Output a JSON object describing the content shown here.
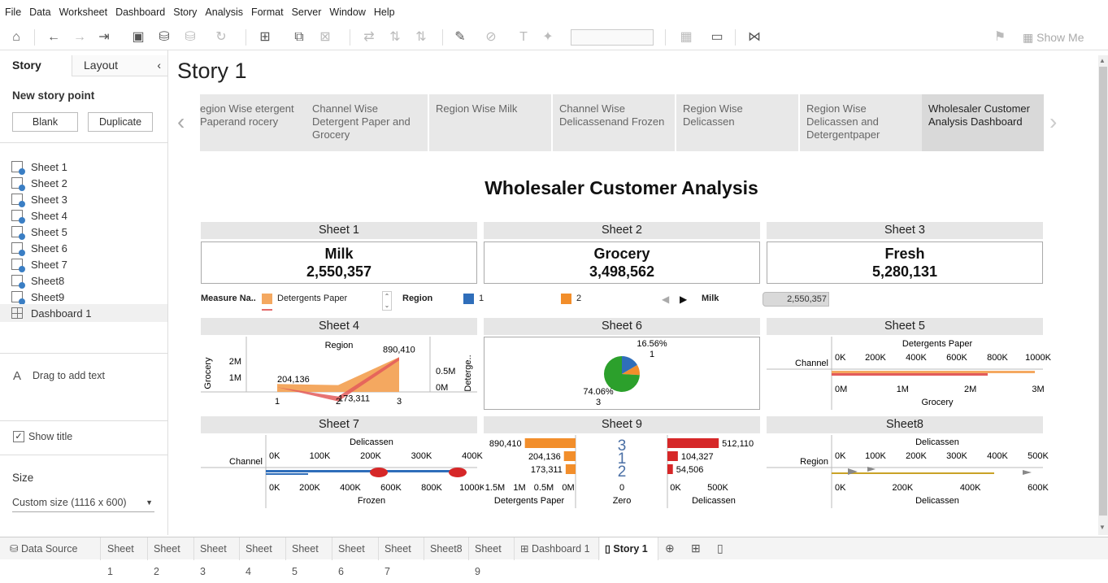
{
  "menu": [
    "File",
    "Data",
    "Worksheet",
    "Dashboard",
    "Story",
    "Analysis",
    "Format",
    "Server",
    "Window",
    "Help"
  ],
  "toolbar": {
    "show_me": "Show Me"
  },
  "left": {
    "tab_story": "Story",
    "tab_layout": "Layout",
    "new_story_point": "New story point",
    "blank": "Blank",
    "duplicate": "Duplicate",
    "sheets": [
      "Sheet 1",
      "Sheet 2",
      "Sheet 3",
      "Sheet 4",
      "Sheet 5",
      "Sheet 6",
      "Sheet 7",
      "Sheet8",
      "Sheet9"
    ],
    "dashboard": "Dashboard 1",
    "drag_text": "Drag to add text",
    "show_title": "Show title",
    "size_label": "Size",
    "size_value": "Custom size (1116 x 600)"
  },
  "story": {
    "title": "Story 1",
    "points": [
      "egion Wise etergent Paperand rocery",
      "Channel Wise Detergent Paper and Grocery",
      "Region Wise Milk",
      "Channel Wise Delicassenand Frozen",
      "Region Wise Delicassen",
      "Region Wise Delicassen  and Detergentpaper",
      "Wholesaler Customer Analysis  Dashboard"
    ]
  },
  "dashboard": {
    "title": "Wholesaler  Customer Analysis",
    "sheet1": {
      "title": "Sheet 1",
      "label": "Milk",
      "value": "2,550,357"
    },
    "sheet2": {
      "title": "Sheet 2",
      "label": "Grocery",
      "value": "3,498,562"
    },
    "sheet3": {
      "title": "Sheet 3",
      "label": "Fresh",
      "value": "5,280,131"
    },
    "legend": {
      "measure_title": "Measure Na..",
      "measure_item": "Detergents Paper",
      "region_title": "Region",
      "region_1": "1",
      "region_2": "2",
      "milk_title": "Milk",
      "milk_value": "2,550,357"
    },
    "sheet4": {
      "title": "Sheet 4"
    },
    "sheet5": {
      "title": "Sheet 5"
    },
    "sheet6": {
      "title": "Sheet 6"
    },
    "sheet7": {
      "title": "Sheet 7"
    },
    "sheet9": {
      "title": "Sheet 9"
    },
    "sheet8": {
      "title": "Sheet8"
    }
  },
  "bottom_tabs": [
    "Data Source",
    "Sheet 1",
    "Sheet 2",
    "Sheet 3",
    "Sheet 4",
    "Sheet 5",
    "Sheet 6",
    "Sheet 7",
    "Sheet8",
    "Sheet 9",
    "Dashboard 1",
    "Story 1"
  ],
  "colors": {
    "orange": "#f28e2b",
    "blue": "#2f6eba",
    "green": "#2ca02c",
    "red": "#d62728",
    "peach": "#f4a860"
  },
  "chart_data": [
    {
      "type": "area",
      "chart": "Sheet 4",
      "xlabel": "Region",
      "categories": [
        "1",
        "2",
        "3"
      ],
      "series": [
        {
          "name": "Grocery",
          "values": [
            204136,
            173311,
            890410
          ]
        }
      ],
      "labels": [
        "204,136",
        "173,311",
        "890,410"
      ],
      "left_axis": {
        "label": "Grocery",
        "ticks": [
          "1M",
          "2M"
        ]
      },
      "right_axis": {
        "label": "Deterge..",
        "ticks": [
          "0M",
          "0.5M"
        ]
      }
    },
    {
      "type": "pie",
      "chart": "Sheet 6",
      "slices": [
        {
          "label": "3",
          "value": 74.06,
          "color": "#2ca02c"
        },
        {
          "label": "1",
          "value": 16.56,
          "color": "#2f6eba"
        },
        {
          "label": "2",
          "value": 9.38,
          "color": "#f28e2b"
        }
      ],
      "labels": [
        "74.06%",
        "16.56%"
      ]
    },
    {
      "type": "bar",
      "chart": "Sheet 5",
      "ylabel": "Channel",
      "top_axis": {
        "label": "Detergents Paper",
        "ticks": [
          "0K",
          "200K",
          "400K",
          "600K",
          "800K",
          "1000K"
        ]
      },
      "bottom_axis": {
        "label": "Grocery",
        "ticks": [
          "0M",
          "1M",
          "2M",
          "3M"
        ]
      }
    },
    {
      "type": "bar",
      "chart": "Sheet 7",
      "ylabel": "Channel",
      "top_axis": {
        "label": "Delicassen",
        "ticks": [
          "0K",
          "100K",
          "200K",
          "300K",
          "400K"
        ]
      },
      "bottom_axis": {
        "label": "Frozen",
        "ticks": [
          "0K",
          "200K",
          "400K",
          "600K",
          "800K",
          "1000K"
        ]
      }
    },
    {
      "type": "bar",
      "chart": "Sheet 9",
      "categories": [
        "3",
        "1",
        "2"
      ],
      "series": [
        {
          "name": "Detergents Paper",
          "values": [
            890410,
            204136,
            173311
          ],
          "labels": [
            "890,410",
            "204,136",
            "173,311"
          ]
        },
        {
          "name": "Delicassen",
          "values": [
            512110,
            104327,
            54506
          ],
          "labels": [
            "512,110",
            "104,327",
            "54,506"
          ]
        }
      ],
      "axes": {
        "left": {
          "label": "Detergents Paper",
          "ticks": [
            "1.5M",
            "1M",
            "0.5M",
            "0M"
          ]
        },
        "mid": {
          "label": "Zero",
          "ticks": [
            "0"
          ]
        },
        "right": {
          "label": "Delicassen",
          "ticks": [
            "0K",
            "500K"
          ]
        }
      }
    },
    {
      "type": "bar",
      "chart": "Sheet8",
      "ylabel": "Region",
      "top_axis": {
        "label": "Delicassen",
        "ticks": [
          "0K",
          "100K",
          "200K",
          "300K",
          "400K",
          "500K"
        ]
      },
      "bottom_axis": {
        "label": "Delicassen",
        "ticks": [
          "0K",
          "200K",
          "400K",
          "600K"
        ]
      }
    }
  ]
}
